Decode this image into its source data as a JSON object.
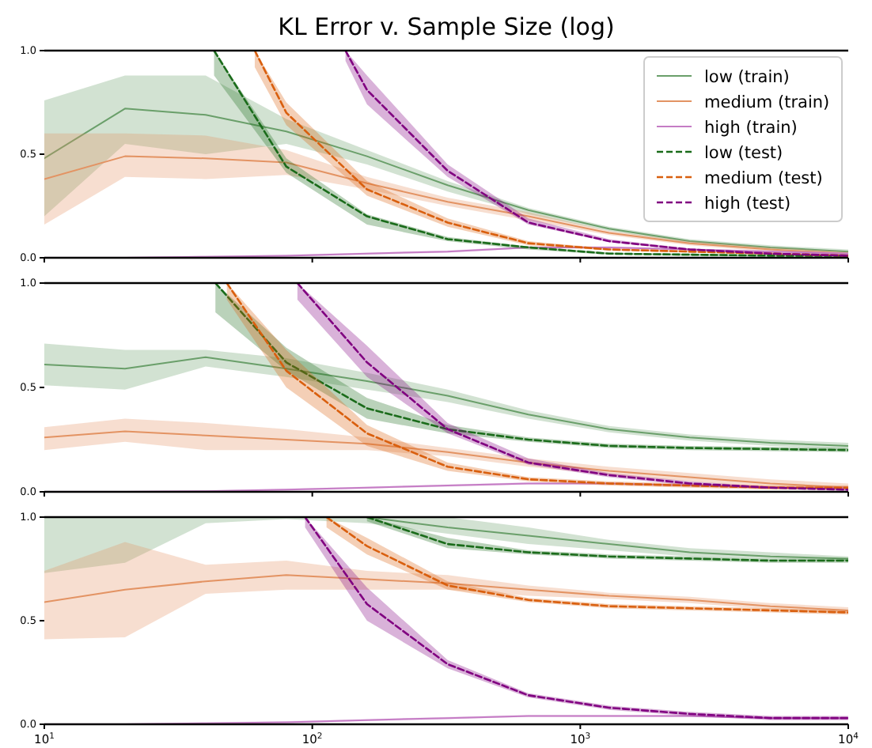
{
  "chart_data": [
    {
      "type": "line",
      "title": "KL Error v. Sample Size (log)",
      "log": "x",
      "xlim": [
        10,
        10000
      ],
      "ylim": [
        0,
        1
      ],
      "xticks": [
        {
          "value": 10,
          "label": null
        },
        {
          "value": 100,
          "label": null
        },
        {
          "value": 1000,
          "label": null
        },
        {
          "value": 10000,
          "label": null
        }
      ],
      "yticks": [
        {
          "value": 0,
          "label": "0.0"
        },
        {
          "value": 0.5,
          "label": "0.5"
        },
        {
          "value": 1,
          "label": "1.0"
        }
      ],
      "tick_labels": "y",
      "legend": "top right",
      "grid": false,
      "marker": "none",
      "series": [
        {
          "name": "low (train)",
          "color": "#6a9f6a",
          "line_style": "solid",
          "x": [
            10,
            20,
            40,
            80,
            160,
            320,
            640,
            1280,
            2560,
            5120,
            10000
          ],
          "values": [
            0.48,
            0.72,
            0.69,
            0.61,
            0.49,
            0.35,
            0.23,
            0.14,
            0.08,
            0.05,
            0.03
          ],
          "lower": [
            0.2,
            0.55,
            0.5,
            0.55,
            0.45,
            0.32,
            0.21,
            0.13,
            0.07,
            0.04,
            0.02
          ],
          "upper": [
            0.76,
            0.88,
            0.88,
            0.67,
            0.52,
            0.37,
            0.24,
            0.15,
            0.09,
            0.06,
            0.04
          ]
        },
        {
          "name": "medium (train)",
          "color": "#e39363",
          "line_style": "solid",
          "x": [
            10,
            20,
            40,
            80,
            160,
            320,
            640,
            1280,
            2560,
            5120,
            10000
          ],
          "values": [
            0.38,
            0.49,
            0.48,
            0.46,
            0.36,
            0.27,
            0.2,
            0.12,
            0.07,
            0.04,
            0.02
          ],
          "lower": [
            0.16,
            0.39,
            0.38,
            0.4,
            0.33,
            0.25,
            0.18,
            0.11,
            0.06,
            0.03,
            0.01
          ],
          "upper": [
            0.6,
            0.6,
            0.59,
            0.52,
            0.39,
            0.29,
            0.22,
            0.13,
            0.08,
            0.05,
            0.03
          ]
        },
        {
          "name": "high (train)",
          "color": "#c57cc5",
          "line_style": "solid",
          "x": [
            10,
            20,
            40,
            80,
            160,
            320,
            640,
            1280,
            2560,
            5120,
            10000
          ],
          "values": [
            0,
            0,
            0.005,
            0.01,
            0.02,
            0.03,
            0.05,
            0.05,
            0.04,
            0.03,
            0.02
          ],
          "lower": [
            0,
            0,
            0,
            0.005,
            0.015,
            0.025,
            0.045,
            0.045,
            0.035,
            0.025,
            0.015
          ],
          "upper": [
            0.005,
            0.005,
            0.01,
            0.015,
            0.025,
            0.035,
            0.055,
            0.055,
            0.045,
            0.035,
            0.025
          ]
        },
        {
          "name": "low (test)",
          "color": "#1a6b1a",
          "line_style": "dashed",
          "x": [
            43,
            80,
            160,
            320,
            640,
            1280,
            2560,
            5120,
            10000
          ],
          "values": [
            1,
            0.44,
            0.2,
            0.09,
            0.05,
            0.02,
            0.015,
            0.01,
            0.01
          ],
          "lower": [
            0.88,
            0.41,
            0.16,
            0.08,
            0.04,
            0.015,
            0.01,
            0.005,
            0.005
          ],
          "upper": [
            1,
            0.48,
            0.21,
            0.1,
            0.055,
            0.025,
            0.02,
            0.015,
            0.015
          ]
        },
        {
          "name": "medium (test)",
          "color": "#d95f0e",
          "line_style": "dashed",
          "x": [
            61,
            80,
            160,
            320,
            640,
            1280,
            2560,
            5120,
            10000
          ],
          "values": [
            1,
            0.7,
            0.33,
            0.17,
            0.07,
            0.04,
            0.03,
            0.02,
            0.01
          ],
          "lower": [
            0.92,
            0.64,
            0.3,
            0.15,
            0.06,
            0.035,
            0.025,
            0.015,
            0.005
          ],
          "upper": [
            1,
            0.75,
            0.37,
            0.19,
            0.08,
            0.045,
            0.035,
            0.025,
            0.015
          ]
        },
        {
          "name": "high (test)",
          "color": "#800080",
          "line_style": "dashed",
          "x": [
            133,
            160,
            320,
            640,
            1280,
            2560,
            5120,
            10000
          ],
          "values": [
            1,
            0.81,
            0.42,
            0.17,
            0.08,
            0.04,
            0.02,
            0.01
          ],
          "lower": [
            0.95,
            0.74,
            0.39,
            0.16,
            0.075,
            0.035,
            0.015,
            0.005
          ],
          "upper": [
            1,
            0.88,
            0.45,
            0.19,
            0.09,
            0.045,
            0.025,
            0.015
          ]
        }
      ]
    },
    {
      "type": "line",
      "log": "x",
      "xlim": [
        10,
        10000
      ],
      "ylim": [
        0,
        1
      ],
      "xticks": [
        {
          "value": 10,
          "label": null
        },
        {
          "value": 100,
          "label": null
        },
        {
          "value": 1000,
          "label": null
        },
        {
          "value": 10000,
          "label": null
        }
      ],
      "yticks": [
        {
          "value": 0,
          "label": "0.0"
        },
        {
          "value": 0.5,
          "label": "0.5"
        },
        {
          "value": 1,
          "label": "1.0"
        }
      ],
      "tick_labels": "y",
      "grid": false,
      "marker": "none",
      "series": [
        {
          "color": "#6a9f6a",
          "line_style": "solid",
          "x": [
            10,
            20,
            40,
            80,
            160,
            320,
            640,
            1280,
            2560,
            5120,
            10000
          ],
          "values": [
            0.61,
            0.59,
            0.645,
            0.59,
            0.53,
            0.46,
            0.37,
            0.3,
            0.26,
            0.235,
            0.22
          ],
          "lower": [
            0.51,
            0.49,
            0.6,
            0.55,
            0.49,
            0.43,
            0.35,
            0.285,
            0.245,
            0.22,
            0.205
          ],
          "upper": [
            0.71,
            0.68,
            0.68,
            0.64,
            0.57,
            0.49,
            0.39,
            0.315,
            0.275,
            0.25,
            0.235
          ]
        },
        {
          "color": "#e39363",
          "line_style": "solid",
          "x": [
            10,
            20,
            40,
            80,
            160,
            320,
            640,
            1280,
            2560,
            5120,
            10000
          ],
          "values": [
            0.26,
            0.29,
            0.27,
            0.25,
            0.23,
            0.19,
            0.14,
            0.1,
            0.07,
            0.04,
            0.02
          ],
          "lower": [
            0.2,
            0.24,
            0.2,
            0.2,
            0.2,
            0.17,
            0.12,
            0.08,
            0.05,
            0.02,
            0.01
          ],
          "upper": [
            0.31,
            0.35,
            0.33,
            0.3,
            0.26,
            0.21,
            0.16,
            0.12,
            0.09,
            0.06,
            0.04
          ]
        },
        {
          "color": "#c57cc5",
          "line_style": "solid",
          "x": [
            10,
            20,
            40,
            80,
            160,
            320,
            640,
            1280,
            2560,
            5120,
            10000
          ],
          "values": [
            0,
            0,
            0.003,
            0.01,
            0.02,
            0.03,
            0.04,
            0.04,
            0.03,
            0.02,
            0.02
          ],
          "lower": [
            0,
            0,
            0,
            0.005,
            0.015,
            0.025,
            0.035,
            0.035,
            0.025,
            0.015,
            0.015
          ],
          "upper": [
            0.005,
            0.005,
            0.008,
            0.015,
            0.025,
            0.035,
            0.045,
            0.045,
            0.035,
            0.025,
            0.025
          ]
        },
        {
          "color": "#1a6b1a",
          "line_style": "dashed",
          "x": [
            43.5,
            80,
            160,
            320,
            640,
            1280,
            2560,
            5120,
            10000
          ],
          "values": [
            1,
            0.62,
            0.4,
            0.3,
            0.25,
            0.22,
            0.21,
            0.205,
            0.2
          ],
          "lower": [
            0.86,
            0.58,
            0.35,
            0.28,
            0.24,
            0.21,
            0.2,
            0.195,
            0.19
          ],
          "upper": [
            1,
            0.69,
            0.45,
            0.32,
            0.26,
            0.23,
            0.22,
            0.215,
            0.21
          ]
        },
        {
          "color": "#d95f0e",
          "line_style": "dashed",
          "x": [
            48,
            80,
            160,
            320,
            640,
            1280,
            2560,
            5120,
            10000
          ],
          "values": [
            1,
            0.58,
            0.28,
            0.12,
            0.06,
            0.04,
            0.03,
            0.02,
            0.02
          ],
          "lower": [
            0.92,
            0.5,
            0.22,
            0.1,
            0.05,
            0.03,
            0.02,
            0.01,
            0.01
          ],
          "upper": [
            1,
            0.68,
            0.32,
            0.14,
            0.07,
            0.05,
            0.04,
            0.03,
            0.03
          ]
        },
        {
          "color": "#800080",
          "line_style": "dashed",
          "x": [
            88,
            160,
            320,
            640,
            1280,
            2560,
            5120,
            10000
          ],
          "values": [
            1,
            0.62,
            0.3,
            0.14,
            0.08,
            0.04,
            0.02,
            0.01
          ],
          "lower": [
            0.92,
            0.55,
            0.28,
            0.13,
            0.07,
            0.03,
            0.015,
            0.005
          ],
          "upper": [
            1,
            0.7,
            0.33,
            0.16,
            0.09,
            0.05,
            0.025,
            0.015
          ]
        }
      ]
    },
    {
      "type": "line",
      "log": "x",
      "xlim": [
        10,
        10000
      ],
      "ylim": [
        0,
        1
      ],
      "xticks": [
        {
          "value": 10,
          "label": "10$^{1}$"
        },
        {
          "value": 100,
          "label": "10$^{2}$"
        },
        {
          "value": 1000,
          "label": "10$^{3}$"
        },
        {
          "value": 10000,
          "label": "10$^{4}$"
        }
      ],
      "yticks": [
        {
          "value": 0,
          "label": "0.0"
        },
        {
          "value": 0.5,
          "label": "0.5"
        },
        {
          "value": 1,
          "label": "1.0"
        }
      ],
      "grid": false,
      "marker": "none",
      "series": [
        {
          "color": "#6a9f6a",
          "line_style": "solid",
          "x": [
            10,
            20,
            40,
            80,
            160,
            320,
            640,
            1280,
            2560,
            5120,
            10000
          ],
          "values": [
            null,
            null,
            null,
            null,
            1,
            0.95,
            0.91,
            0.87,
            0.83,
            0.81,
            0.8
          ],
          "lower": [
            0.73,
            0.78,
            0.97,
            0.99,
            0.97,
            0.92,
            0.87,
            0.84,
            0.81,
            0.8,
            0.79
          ],
          "upper": [
            1,
            1,
            1,
            1,
            1,
            1,
            0.95,
            0.89,
            0.85,
            0.83,
            0.81
          ]
        },
        {
          "color": "#e39363",
          "line_style": "solid",
          "x": [
            10,
            20,
            40,
            80,
            160,
            320,
            640,
            1280,
            2560,
            5120,
            10000
          ],
          "values": [
            0.59,
            0.65,
            0.69,
            0.72,
            0.7,
            0.68,
            0.65,
            0.62,
            0.6,
            0.57,
            0.55
          ],
          "lower": [
            0.41,
            0.42,
            0.63,
            0.65,
            0.65,
            0.65,
            0.62,
            0.605,
            0.585,
            0.555,
            0.535
          ],
          "upper": [
            0.74,
            0.88,
            0.77,
            0.79,
            0.74,
            0.72,
            0.67,
            0.635,
            0.615,
            0.585,
            0.565
          ]
        },
        {
          "color": "#c57cc5",
          "line_style": "solid",
          "x": [
            10,
            20,
            40,
            80,
            160,
            320,
            640,
            1280,
            2560,
            5120,
            10000
          ],
          "values": [
            0,
            0,
            0.005,
            0.01,
            0.02,
            0.03,
            0.04,
            0.04,
            0.04,
            0.03,
            0.03
          ],
          "lower": [
            0,
            0,
            0,
            0.005,
            0.015,
            0.025,
            0.035,
            0.035,
            0.035,
            0.025,
            0.025
          ],
          "upper": [
            0.005,
            0.005,
            0.01,
            0.015,
            0.025,
            0.035,
            0.045,
            0.045,
            0.045,
            0.035,
            0.035
          ]
        },
        {
          "color": "#1a6b1a",
          "line_style": "dashed",
          "x": [
            160,
            320,
            640,
            1280,
            2560,
            5120,
            10000
          ],
          "values": [
            1,
            0.87,
            0.83,
            0.81,
            0.8,
            0.79,
            0.79
          ],
          "lower": [
            0.98,
            0.85,
            0.82,
            0.8,
            0.79,
            0.78,
            0.78
          ],
          "upper": [
            1,
            0.9,
            0.84,
            0.82,
            0.81,
            0.8,
            0.8
          ]
        },
        {
          "color": "#d95f0e",
          "line_style": "dashed",
          "x": [
            113,
            160,
            320,
            640,
            1280,
            2560,
            5120,
            10000
          ],
          "values": [
            1,
            0.86,
            0.67,
            0.6,
            0.57,
            0.56,
            0.55,
            0.54
          ],
          "lower": [
            0.95,
            0.82,
            0.65,
            0.59,
            0.56,
            0.55,
            0.54,
            0.53
          ],
          "upper": [
            1,
            0.9,
            0.69,
            0.61,
            0.58,
            0.57,
            0.56,
            0.55
          ]
        },
        {
          "color": "#800080",
          "line_style": "dashed",
          "x": [
            94,
            160,
            320,
            640,
            1280,
            2560,
            5120,
            10000
          ],
          "values": [
            1,
            0.58,
            0.29,
            0.14,
            0.08,
            0.05,
            0.03,
            0.03
          ],
          "lower": [
            0.95,
            0.5,
            0.27,
            0.13,
            0.07,
            0.04,
            0.02,
            0.02
          ],
          "upper": [
            1,
            0.66,
            0.31,
            0.15,
            0.09,
            0.06,
            0.04,
            0.04
          ]
        }
      ]
    }
  ]
}
